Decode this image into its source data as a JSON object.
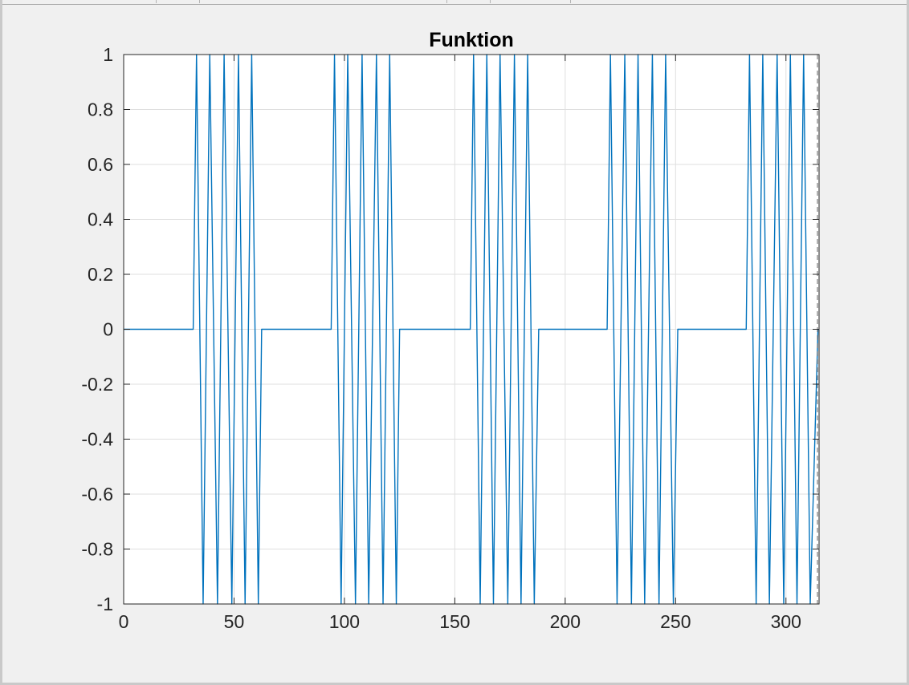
{
  "chart_data": {
    "type": "line",
    "title": "Funktion",
    "xlabel": "",
    "ylabel": "",
    "xlim": [
      0,
      315
    ],
    "ylim": [
      -1,
      1
    ],
    "xticks": [
      "0",
      "50",
      "100",
      "150",
      "200",
      "250",
      "300"
    ],
    "xtick_values": [
      0,
      50,
      100,
      150,
      200,
      250,
      300
    ],
    "yticks": [
      "1",
      "0.8",
      "0.6",
      "0.4",
      "0.2",
      "0",
      "-0.2",
      "-0.4",
      "-0.6",
      "-0.8",
      "-1"
    ],
    "ytick_values": [
      1,
      0.8,
      0.6,
      0.4,
      0.2,
      0,
      -0.2,
      -0.4,
      -0.6,
      -0.8,
      -1
    ],
    "grid": true,
    "series": [
      {
        "color": "#0072bd",
        "x": [
          0,
          31.5,
          33,
          36,
          39,
          42.5,
          45.5,
          49,
          52,
          55,
          58,
          61,
          62.5,
          94,
          95.5,
          98.5,
          101.5,
          105,
          108,
          111,
          114.5,
          117.5,
          120.5,
          123.5,
          125,
          157,
          158.5,
          161.5,
          164.5,
          167.5,
          170.5,
          174,
          177,
          180,
          183,
          186,
          188,
          219,
          220.5,
          223.5,
          227,
          230,
          233,
          236,
          239.5,
          242.5,
          245.5,
          249,
          251,
          282,
          283.5,
          286.5,
          289.5,
          292.5,
          296,
          299,
          302,
          305,
          308,
          311,
          314.5
        ],
        "y": [
          0,
          0,
          1,
          -1,
          1,
          -1,
          1,
          -1,
          1,
          -1,
          1,
          -1,
          0,
          0,
          1,
          -1,
          1,
          -1,
          1,
          -1,
          1,
          -1,
          1,
          -1,
          0,
          0,
          1,
          -1,
          1,
          -1,
          1,
          -1,
          1,
          -1,
          1,
          -1,
          0,
          0,
          1,
          -1,
          1,
          -1,
          1,
          -1,
          1,
          -1,
          1,
          -1,
          0,
          0,
          1,
          -1,
          1,
          -1,
          1,
          -1,
          1,
          -1,
          1,
          -1,
          0
        ]
      }
    ]
  },
  "colors": {
    "line": "#0072bd",
    "axes": "#262626",
    "grid": "#dfdfdf",
    "background": "#f0f0f0",
    "plot_background": "#ffffff"
  }
}
